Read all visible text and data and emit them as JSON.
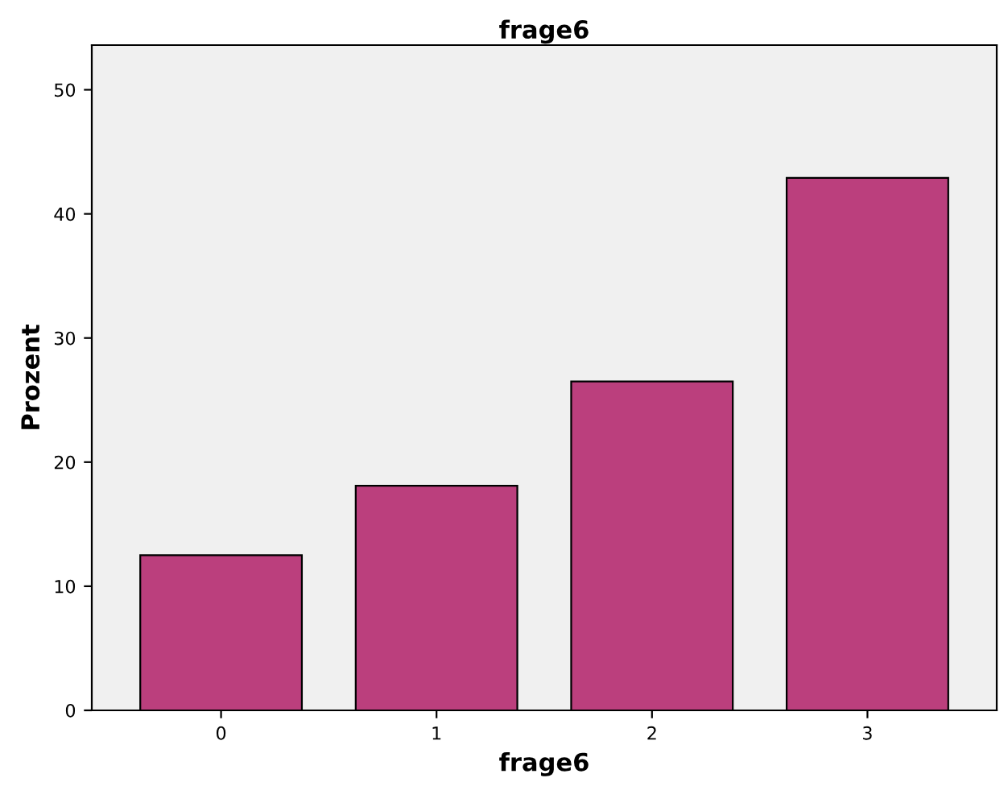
{
  "chart_data": {
    "type": "bar",
    "title": "frage6",
    "xlabel": "frage6",
    "ylabel": "Prozent",
    "categories": [
      "0",
      "1",
      "2",
      "3"
    ],
    "values": [
      12.5,
      18.1,
      26.5,
      42.9
    ],
    "color": "#bb3f7d",
    "ylim": [
      0,
      53.6
    ],
    "yticks": [
      0,
      10,
      20,
      30,
      40,
      50
    ],
    "grid": false
  }
}
